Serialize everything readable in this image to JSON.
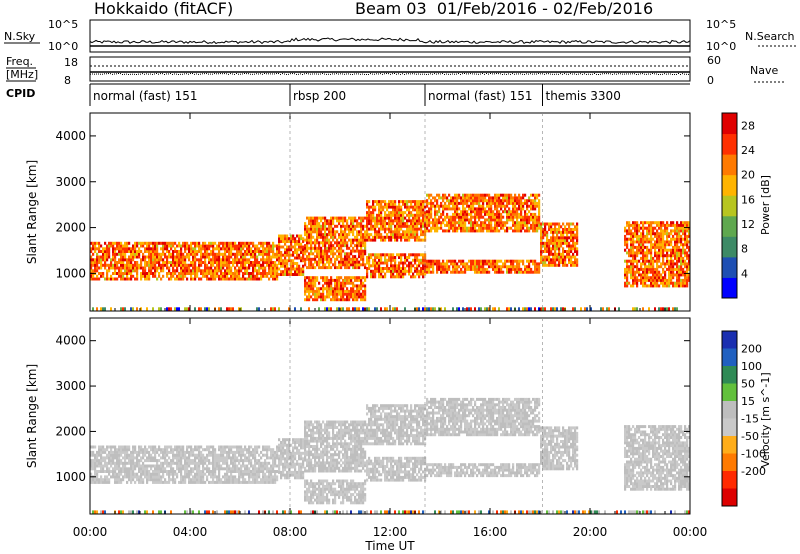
{
  "header": {
    "station": "Hokkaido (fitACF)",
    "beam_range": "Beam 03  01/Feb/2016 - 02/Feb/2016"
  },
  "strips": {
    "nsky_label": "N.Sky",
    "nsky_ticks": [
      "10^5",
      "10^0"
    ],
    "nsearch_label": "N.Search",
    "nsearch_ticks": [
      "10^5",
      "10^0"
    ],
    "freq_label": "Freq.",
    "freq_unit": "[MHz]",
    "freq_ticks": [
      "18",
      "8"
    ],
    "nave_label": "Nave",
    "nave_ticks": [
      "60",
      "0"
    ],
    "cpid_label": "CPID"
  },
  "cpid_segments": [
    {
      "label": "normal (fast) 151",
      "start_hour": 0.0
    },
    {
      "label": "rbsp 200",
      "start_hour": 8.0
    },
    {
      "label": "normal (fast) 151",
      "start_hour": 13.4
    },
    {
      "label": "themis 3300",
      "start_hour": 18.1
    }
  ],
  "colors": {
    "power": [
      "#0000ff",
      "#1e4fb3",
      "#3d8a66",
      "#5fa84f",
      "#b7c520",
      "#ffb400",
      "#ff7a00",
      "#ff3000",
      "#e00000"
    ],
    "velocity": [
      "#1a2fb0",
      "#2060c0",
      "#2f8a55",
      "#62c03c",
      "#bebebe",
      "#c9c9c9",
      "#ffad1a",
      "#ff7a00",
      "#ff2a00",
      "#dd0000"
    ]
  },
  "chart_data": [
    {
      "type": "heatmap",
      "title": "Power",
      "xlabel": "",
      "ylabel": "Slant Range [km]",
      "x_ticks": [
        "00:00",
        "04:00",
        "08:00",
        "12:00",
        "16:00",
        "20:00",
        "00:00"
      ],
      "xlim_hours": [
        0,
        24
      ],
      "ylim": [
        180,
        4500
      ],
      "y_ticks": [
        1000,
        2000,
        3000,
        4000
      ],
      "colorbar_label": "Power [dB]",
      "colorbar_ticks": [
        4,
        8,
        12,
        16,
        20,
        24,
        28
      ],
      "colorbar_range": [
        0,
        30
      ]
    },
    {
      "type": "heatmap",
      "title": "Velocity",
      "xlabel": "Time UT",
      "ylabel": "Slant Range [km]",
      "x_ticks": [
        "00:00",
        "04:00",
        "08:00",
        "12:00",
        "16:00",
        "20:00",
        "00:00"
      ],
      "xlim_hours": [
        0,
        24
      ],
      "ylim": [
        180,
        4500
      ],
      "y_ticks": [
        1000,
        2000,
        3000,
        4000
      ],
      "colorbar_label": "Velocity [m s^-1]",
      "colorbar_ticks": [
        "200",
        "100",
        "50",
        "15",
        "-15",
        "-50",
        "-100",
        "-200"
      ]
    }
  ]
}
